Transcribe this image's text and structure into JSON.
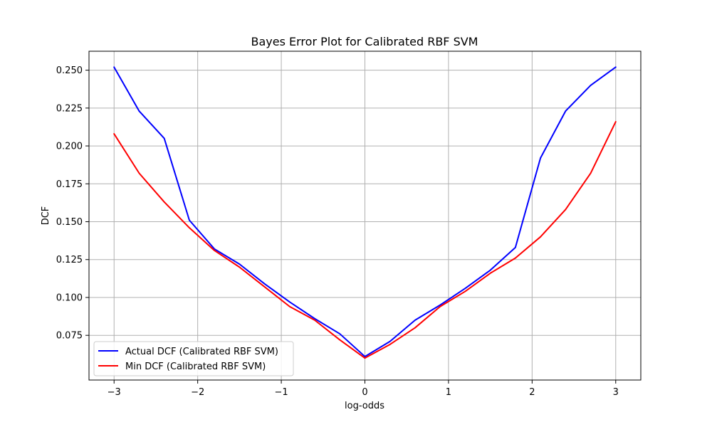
{
  "chart_data": {
    "type": "line",
    "title": "Bayes Error Plot for Calibrated RBF SVM",
    "xlabel": "log-odds",
    "ylabel": "DCF",
    "xlim": [
      -3.3,
      3.3
    ],
    "ylim": [
      0.0455,
      0.2625
    ],
    "grid": true,
    "legend_position": "lower-left",
    "x": [
      -3.0,
      -2.7,
      -2.4,
      -2.1,
      -1.8,
      -1.5,
      -1.2,
      -0.9,
      -0.6,
      -0.3,
      0.0,
      0.3,
      0.6,
      0.9,
      1.2,
      1.5,
      1.8,
      2.1,
      2.4,
      2.7,
      3.0
    ],
    "xticks": [
      -3,
      -2,
      -1,
      0,
      1,
      2,
      3
    ],
    "xtick_labels": [
      "−3",
      "−2",
      "−1",
      "0",
      "1",
      "2",
      "3"
    ],
    "yticks": [
      0.075,
      0.1,
      0.125,
      0.15,
      0.175,
      0.2,
      0.225,
      0.25
    ],
    "ytick_labels": [
      "0.075",
      "0.100",
      "0.125",
      "0.150",
      "0.175",
      "0.200",
      "0.225",
      "0.250"
    ],
    "series": [
      {
        "name": "Actual DCF (Calibrated RBF SVM)",
        "color": "#0000ff",
        "values": [
          0.252,
          0.223,
          0.205,
          0.151,
          0.132,
          0.122,
          0.109,
          0.097,
          0.086,
          0.076,
          0.061,
          0.071,
          0.085,
          0.095,
          0.106,
          0.118,
          0.133,
          0.192,
          0.223,
          0.24,
          0.252
        ]
      },
      {
        "name": "Min DCF (Calibrated RBF SVM)",
        "color": "#ff0000",
        "values": [
          0.208,
          0.182,
          0.163,
          0.146,
          0.131,
          0.12,
          0.107,
          0.094,
          0.085,
          0.072,
          0.06,
          0.069,
          0.08,
          0.094,
          0.104,
          0.116,
          0.126,
          0.14,
          0.158,
          0.182,
          0.216
        ]
      }
    ]
  }
}
